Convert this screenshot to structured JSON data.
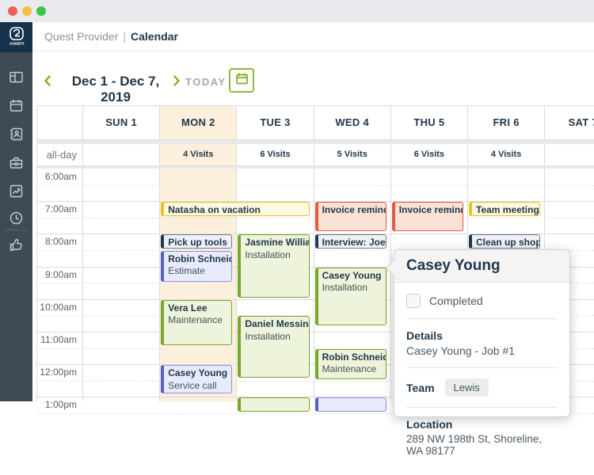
{
  "app": {
    "brand": "Quest Provider",
    "divider": "|",
    "page": "Calendar",
    "logo_text": "JOBBER"
  },
  "sidebar": {
    "icons": [
      "dashboard-icon",
      "schedule-icon",
      "clients-icon",
      "work-icon",
      "reports-icon",
      "timesheet-icon",
      "approvals-icon"
    ]
  },
  "toolbar": {
    "prev_icon": "chevron-left",
    "date_range": "Dec 1 - Dec 7, 2019",
    "next_icon": "chevron-right",
    "today_label": "TODAY",
    "picker_icon": "calendar"
  },
  "calendar": {
    "all_day_label": "all-day",
    "day_headers": [
      {
        "label": "SUN 1",
        "all_day": "",
        "highlight": false
      },
      {
        "label": "MON 2",
        "all_day": "4 Visits",
        "highlight": true
      },
      {
        "label": "TUE 3",
        "all_day": "6 Visits",
        "highlight": false
      },
      {
        "label": "WED 4",
        "all_day": "5 Visits",
        "highlight": false
      },
      {
        "label": "THU 5",
        "all_day": "6 Visits",
        "highlight": false
      },
      {
        "label": "FRI 6",
        "all_day": "4 Visits",
        "highlight": false
      },
      {
        "label": "SAT 7",
        "all_day": "",
        "highlight": false
      }
    ],
    "time_labels": [
      "6:00am",
      "7:00am",
      "8:00am",
      "9:00am",
      "10:00am",
      "11:00am",
      "12:00pm",
      "1:00pm"
    ],
    "events": [
      {
        "title": "Natasha on vacation",
        "subtitle": "",
        "day": 1,
        "span": 2,
        "start": 7.0,
        "end": 7.5,
        "palette": "yellow"
      },
      {
        "title": "Invoice reminder: Vera Lee",
        "subtitle": "",
        "day": 3,
        "span": 1,
        "start": 7.0,
        "end": 7.95,
        "palette": "red"
      },
      {
        "title": "Invoice reminder: Daniel Messina",
        "subtitle": "",
        "day": 4,
        "span": 1,
        "start": 7.0,
        "end": 7.95,
        "palette": "red"
      },
      {
        "title": "Team meeting",
        "subtitle": "",
        "day": 5,
        "span": 1,
        "start": 7.0,
        "end": 7.5,
        "palette": "yellow"
      },
      {
        "title": "Pick up tools",
        "subtitle": "",
        "day": 1,
        "span": 1,
        "start": 8.0,
        "end": 8.5,
        "palette": "slate"
      },
      {
        "title": "Jasmine Williams",
        "subtitle": "Installation",
        "day": 2,
        "span": 1,
        "start": 8.0,
        "end": 10.0,
        "palette": "green"
      },
      {
        "title": "Interview: Joe",
        "subtitle": "",
        "day": 3,
        "span": 1,
        "start": 8.0,
        "end": 8.5,
        "palette": "slate"
      },
      {
        "title": "Clean up shop",
        "subtitle": "",
        "day": 5,
        "span": 1,
        "start": 8.0,
        "end": 8.5,
        "palette": "slate"
      },
      {
        "title": "Robin Schneider",
        "subtitle": "Estimate",
        "day": 1,
        "span": 1,
        "start": 8.5,
        "end": 9.5,
        "palette": "purple"
      },
      {
        "title": "Casey Young",
        "subtitle": "Installation",
        "day": 3,
        "span": 1,
        "start": 9.0,
        "end": 10.85,
        "palette": "green"
      },
      {
        "title": "Vera Lee",
        "subtitle": "Maintenance",
        "day": 1,
        "span": 1,
        "start": 10.0,
        "end": 11.45,
        "palette": "green"
      },
      {
        "title": "Daniel Messina",
        "subtitle": "Installation",
        "day": 2,
        "span": 1,
        "start": 10.5,
        "end": 12.45,
        "palette": "green"
      },
      {
        "title": "Robin Schneider",
        "subtitle": "Maintenance",
        "day": 3,
        "span": 1,
        "start": 11.5,
        "end": 12.5,
        "palette": "green"
      },
      {
        "title": "Casey Young",
        "subtitle": "Service call",
        "day": 1,
        "span": 1,
        "start": 12.0,
        "end": 12.92,
        "palette": "purple"
      },
      {
        "title": "",
        "subtitle": "",
        "day": 2,
        "span": 1,
        "start": 13.0,
        "end": 13.5,
        "palette": "green"
      },
      {
        "title": "",
        "subtitle": "",
        "day": 3,
        "span": 1,
        "start": 13.0,
        "end": 13.5,
        "palette": "purple"
      }
    ]
  },
  "popup": {
    "title": "Casey Young",
    "completed_label": "Completed",
    "completed_checked": false,
    "details_label": "Details",
    "details_value": "Casey Young - Job #1",
    "team_label": "Team",
    "team_value": "Lewis",
    "location_label": "Location",
    "location_value": "289 NW 198th St, Shoreline, WA 98177"
  },
  "colors": {
    "accent_green": "#8cb832",
    "brand_navy": "#22384a",
    "sidebar": "#3e4b55",
    "logo_block": "#16314a",
    "monday_highlight": "#fcf0dc",
    "event_green_bg": "#edf4db",
    "event_green_border": "#79a62b",
    "event_yellow_bg": "#fdf8e1",
    "event_yellow_border": "#e5c424",
    "event_red_bg": "#fbe2d7",
    "event_red_border": "#e4593d",
    "event_slate_bg": "#eef2f7",
    "event_slate_border": "#24384b",
    "event_purple_bg": "#e9ebfb",
    "event_purple_border": "#5560c8"
  }
}
